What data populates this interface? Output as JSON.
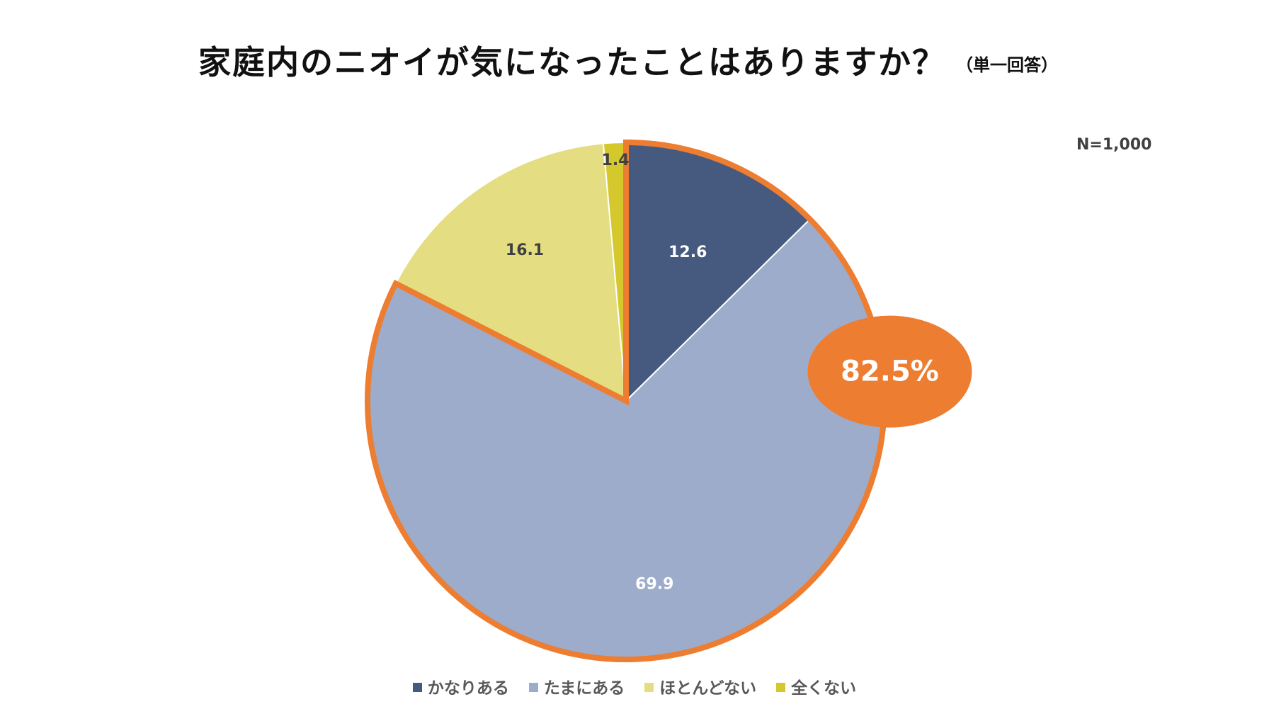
{
  "chart_data": {
    "type": "pie",
    "title": "家庭内のニオイが気になったことはありますか？",
    "subtitle": "（単一回答）",
    "n_label": "N=1,000",
    "categories": [
      "かなりある",
      "たまにある",
      "ほとんどない",
      "全くない"
    ],
    "values": [
      12.6,
      69.9,
      16.1,
      1.4
    ],
    "value_labels": [
      "12.6",
      "69.9",
      "16.1",
      "1.4"
    ],
    "colors": [
      "#465A80",
      "#9DACCA",
      "#E5DD82",
      "#D4C82C"
    ],
    "label_colors": [
      "#ffffff",
      "#ffffff",
      "#404040",
      "#404040"
    ],
    "start_angle": "12 o'clock",
    "direction": "clockwise",
    "legend_position": "bottom",
    "highlight": {
      "categories": [
        "かなりある",
        "たまにある"
      ],
      "label": "82.5%",
      "color": "#ED7D31"
    }
  }
}
